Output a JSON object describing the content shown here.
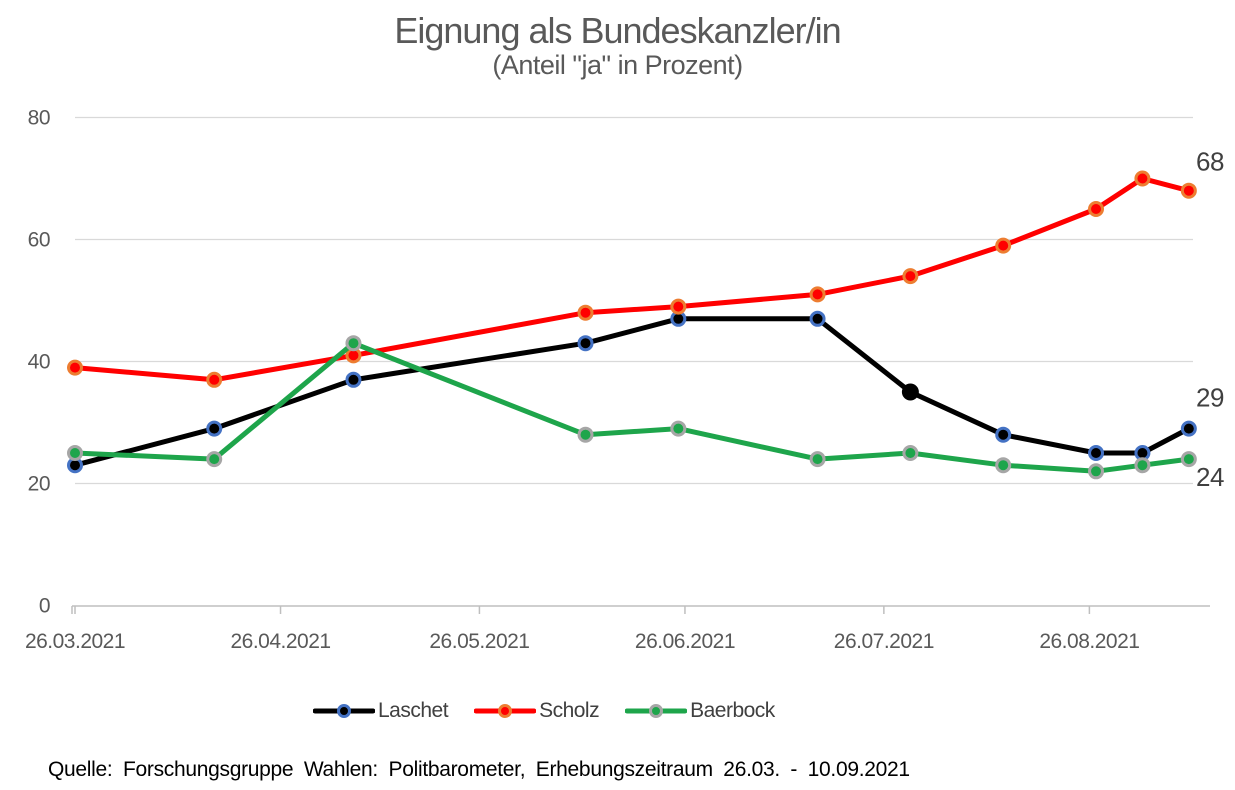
{
  "title": "Eignung als Bundeskanzler/in",
  "subtitle": "(Anteil \"ja\" in Prozent)",
  "source": "Quelle: Forschungsgruppe Wahlen: Politbarometer, Erhebungszeitraum 26.03. - 10.09.2021",
  "chart_data": {
    "type": "line",
    "x": [
      "26.03.2021",
      "16.04.2021",
      "07.05.2021",
      "11.06.2021",
      "25.06.2021",
      "16.07.2021",
      "30.07.2021",
      "13.08.2021",
      "27.08.2021",
      "03.09.2021",
      "10.09.2021"
    ],
    "x_tick_labels": [
      "26.03.2021",
      "26.04.2021",
      "26.05.2021",
      "26.06.2021",
      "26.07.2021",
      "26.08.2021"
    ],
    "y_ticks": [
      0,
      20,
      40,
      60,
      80
    ],
    "ylim": [
      0,
      80
    ],
    "grid": true,
    "legend_position": "bottom",
    "series": [
      {
        "name": "Laschet",
        "color": "#000000",
        "marker_ring": "#4472C4",
        "values": [
          23,
          29,
          37,
          43,
          47,
          47,
          35,
          28,
          25,
          25,
          29
        ]
      },
      {
        "name": "Scholz",
        "color": "#FF0000",
        "marker_ring": "#ED7D31",
        "values": [
          39,
          37,
          41,
          48,
          49,
          51,
          54,
          59,
          65,
          70,
          68
        ]
      },
      {
        "name": "Baerbock",
        "color": "#1EA54B",
        "marker_ring": "#A6A6A6",
        "values": [
          25,
          24,
          43,
          28,
          29,
          24,
          25,
          23,
          22,
          23,
          24
        ]
      }
    ],
    "end_labels": [
      {
        "series": "Scholz",
        "value": 68
      },
      {
        "series": "Laschet",
        "value": 29
      },
      {
        "series": "Baerbock",
        "value": 24
      }
    ],
    "colors": {
      "grid": "#D9D9D9",
      "axis": "#BFBFBF",
      "tick_text": "#595959",
      "end_label_text": "#404040"
    }
  }
}
